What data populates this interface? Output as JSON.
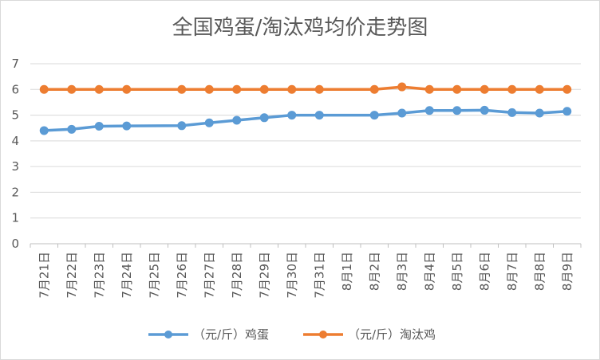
{
  "chart_data": {
    "type": "line",
    "title": "全国鸡蛋/淘汰鸡均价走势图",
    "xlabel": "",
    "ylabel": "",
    "ylim": [
      0,
      7
    ],
    "yticks": [
      "0",
      "1",
      "2",
      "3",
      "4",
      "5",
      "6",
      "7"
    ],
    "grid": true,
    "legend_position": "bottom",
    "categories": [
      "7月21日",
      "7月22日",
      "7月23日",
      "7月24日",
      "7月25日",
      "7月26日",
      "7月27日",
      "7月28日",
      "7月29日",
      "7月30日",
      "7月31日",
      "8月1日",
      "8月2日",
      "8月3日",
      "8月4日",
      "8月5日",
      "8月6日",
      "8月7日",
      "8月8日",
      "8月9日"
    ],
    "series": [
      {
        "name": "（元/斤）鸡蛋",
        "color": "#5b9bd5",
        "values": [
          4.4,
          4.45,
          4.57,
          4.58,
          null,
          4.59,
          4.7,
          4.8,
          4.9,
          5.0,
          5.0,
          null,
          5.0,
          5.08,
          5.18,
          5.18,
          5.19,
          5.1,
          5.08,
          5.15
        ]
      },
      {
        "name": "（元/斤）淘汰鸡",
        "color": "#ed7d31",
        "values": [
          6.0,
          6.0,
          6.0,
          6.0,
          null,
          6.0,
          6.0,
          6.0,
          6.0,
          6.0,
          6.0,
          null,
          6.0,
          6.1,
          6.0,
          6.0,
          6.0,
          6.0,
          6.0,
          6.0
        ]
      }
    ]
  }
}
